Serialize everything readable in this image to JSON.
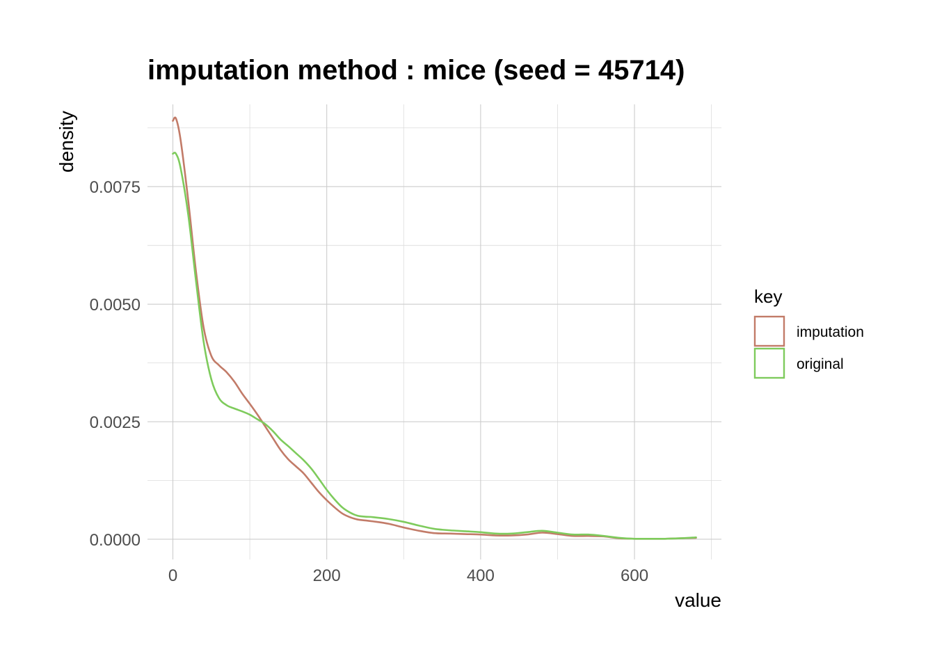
{
  "chart_data": {
    "type": "line",
    "title": "imputation method : mice (seed = 45714)",
    "xlabel": "value",
    "ylabel": "density",
    "xlim": [
      -33,
      713
    ],
    "ylim": [
      -0.00043,
      0.00925
    ],
    "x_ticks": [
      0,
      200,
      400,
      600
    ],
    "x_tick_labels": [
      "0",
      "200",
      "400",
      "600"
    ],
    "x_minor_ticks": [
      100,
      300,
      500,
      700
    ],
    "y_ticks": [
      0,
      0.0025,
      0.005,
      0.0075
    ],
    "y_tick_labels": [
      "0.0000",
      "0.0025",
      "0.0050",
      "0.0075"
    ],
    "y_minor_ticks": [
      0.00125,
      0.00375,
      0.00625,
      0.00875
    ],
    "grid": true,
    "legend": {
      "title": "key",
      "position": "right"
    },
    "series": [
      {
        "name": "imputation",
        "color": "#c27b68",
        "x": [
          0,
          4,
          10,
          20,
          30,
          40,
          50,
          60,
          70,
          80,
          90,
          100,
          110,
          120,
          130,
          140,
          150,
          160,
          170,
          180,
          190,
          200,
          210,
          220,
          230,
          240,
          250,
          260,
          280,
          300,
          320,
          340,
          360,
          380,
          400,
          420,
          440,
          460,
          480,
          500,
          520,
          540,
          560,
          580,
          600,
          620,
          640,
          660,
          680
        ],
        "y": [
          0.0089,
          0.00895,
          0.0085,
          0.0072,
          0.0057,
          0.0045,
          0.0039,
          0.0037,
          0.00355,
          0.00335,
          0.0031,
          0.00288,
          0.00265,
          0.0024,
          0.00215,
          0.0019,
          0.0017,
          0.00155,
          0.0014,
          0.0012,
          0.001,
          0.00083,
          0.00068,
          0.00055,
          0.00047,
          0.00042,
          0.0004,
          0.00038,
          0.00033,
          0.00025,
          0.00018,
          0.00013,
          0.00012,
          0.00011,
          0.0001,
          8e-05,
          8e-05,
          0.0001,
          0.00014,
          0.00011,
          7e-05,
          7e-05,
          6e-05,
          2e-05,
          1e-05,
          1e-05,
          1e-05,
          2e-05,
          3e-05
        ]
      },
      {
        "name": "original",
        "color": "#7ecb5c",
        "x": [
          0,
          4,
          10,
          20,
          30,
          40,
          50,
          60,
          70,
          80,
          90,
          100,
          110,
          120,
          130,
          140,
          150,
          160,
          170,
          180,
          190,
          200,
          210,
          220,
          230,
          240,
          250,
          260,
          280,
          300,
          320,
          340,
          360,
          380,
          400,
          420,
          440,
          460,
          480,
          500,
          520,
          540,
          560,
          580,
          600,
          620,
          640,
          660,
          680
        ],
        "y": [
          0.0082,
          0.0082,
          0.0079,
          0.0069,
          0.0055,
          0.0042,
          0.0034,
          0.003,
          0.00285,
          0.00278,
          0.00272,
          0.00265,
          0.00255,
          0.00245,
          0.0023,
          0.00212,
          0.00198,
          0.00183,
          0.00168,
          0.0015,
          0.00128,
          0.00105,
          0.00085,
          0.00068,
          0.00057,
          0.0005,
          0.00048,
          0.00047,
          0.00043,
          0.00037,
          0.00029,
          0.00022,
          0.00019,
          0.00017,
          0.00015,
          0.00012,
          0.00012,
          0.00015,
          0.00018,
          0.00014,
          0.0001,
          0.0001,
          7e-05,
          3e-05,
          1e-05,
          1e-05,
          1e-05,
          2e-05,
          4e-05
        ]
      }
    ]
  }
}
